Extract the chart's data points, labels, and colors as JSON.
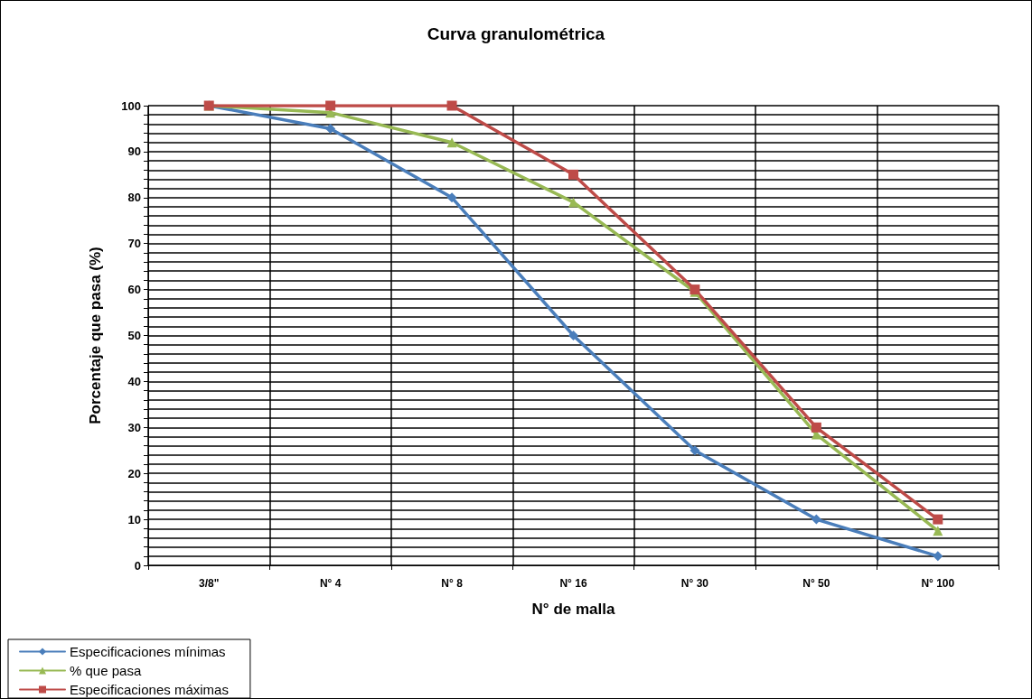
{
  "chart_data": {
    "type": "line",
    "title": "Curva granulométrica",
    "xlabel": "N° de malla",
    "ylabel": "Porcentaje que pasa (%)",
    "categories": [
      "3/8\"",
      "N° 4",
      "N° 8",
      "N° 16",
      "N° 30",
      "N° 50",
      "N° 100"
    ],
    "series": [
      {
        "name": "Especificaciones mínimas",
        "color": "#4a7ebb",
        "marker": "diamond",
        "values": [
          100,
          95,
          80,
          50,
          25,
          10,
          2
        ]
      },
      {
        "name": "% que pasa",
        "color": "#98b954",
        "marker": "triangle",
        "values": [
          100,
          98.5,
          92,
          79,
          59.5,
          28.5,
          7.5
        ]
      },
      {
        "name": "Especificaciones máximas",
        "color": "#be4b48",
        "marker": "square",
        "values": [
          100,
          100,
          100,
          85,
          60,
          30,
          10
        ]
      }
    ],
    "ylim": [
      0,
      100
    ],
    "yticks": [
      0,
      {
        "value": 2,
        "label": null
      },
      {
        "value": 4,
        "label": null
      },
      {
        "value": 6,
        "label": null
      },
      {
        "value": 8,
        "label": null
      },
      10,
      {
        "value": 12,
        "label": null
      },
      {
        "value": 14,
        "label": null
      },
      {
        "value": 16,
        "label": null
      },
      {
        "value": 18,
        "label": null
      },
      20,
      {
        "value": 22,
        "label": null
      },
      {
        "value": 24,
        "label": null
      },
      {
        "value": 26,
        "label": null
      },
      {
        "value": 28,
        "label": null
      },
      30,
      {
        "value": 32,
        "label": null
      },
      {
        "value": 34,
        "label": null
      },
      {
        "value": 36,
        "label": null
      },
      {
        "value": 38,
        "label": null
      },
      40,
      {
        "value": 42,
        "label": null
      },
      {
        "value": 44,
        "label": null
      },
      {
        "value": 46,
        "label": null
      },
      {
        "value": 48,
        "label": null
      },
      50,
      {
        "value": 52,
        "label": null
      },
      {
        "value": 54,
        "label": null
      },
      {
        "value": 56,
        "label": null
      },
      {
        "value": 58,
        "label": null
      },
      60,
      {
        "value": 62,
        "label": null
      },
      {
        "value": 64,
        "label": null
      },
      {
        "value": 66,
        "label": null
      },
      {
        "value": 68,
        "label": null
      },
      70,
      {
        "value": 72,
        "label": null
      },
      {
        "value": 74,
        "label": null
      },
      {
        "value": 76,
        "label": null
      },
      {
        "value": 78,
        "label": null
      },
      80,
      {
        "value": 82,
        "label": null
      },
      {
        "value": 84,
        "label": null
      },
      {
        "value": 86,
        "label": null
      },
      {
        "value": 88,
        "label": null
      },
      90,
      {
        "value": 92,
        "label": null
      },
      {
        "value": 94,
        "label": null
      },
      {
        "value": 96,
        "label": null
      },
      {
        "value": 98,
        "label": null
      },
      100
    ],
    "grid": true,
    "legend": "bottom left",
    "line_style": "solid"
  }
}
